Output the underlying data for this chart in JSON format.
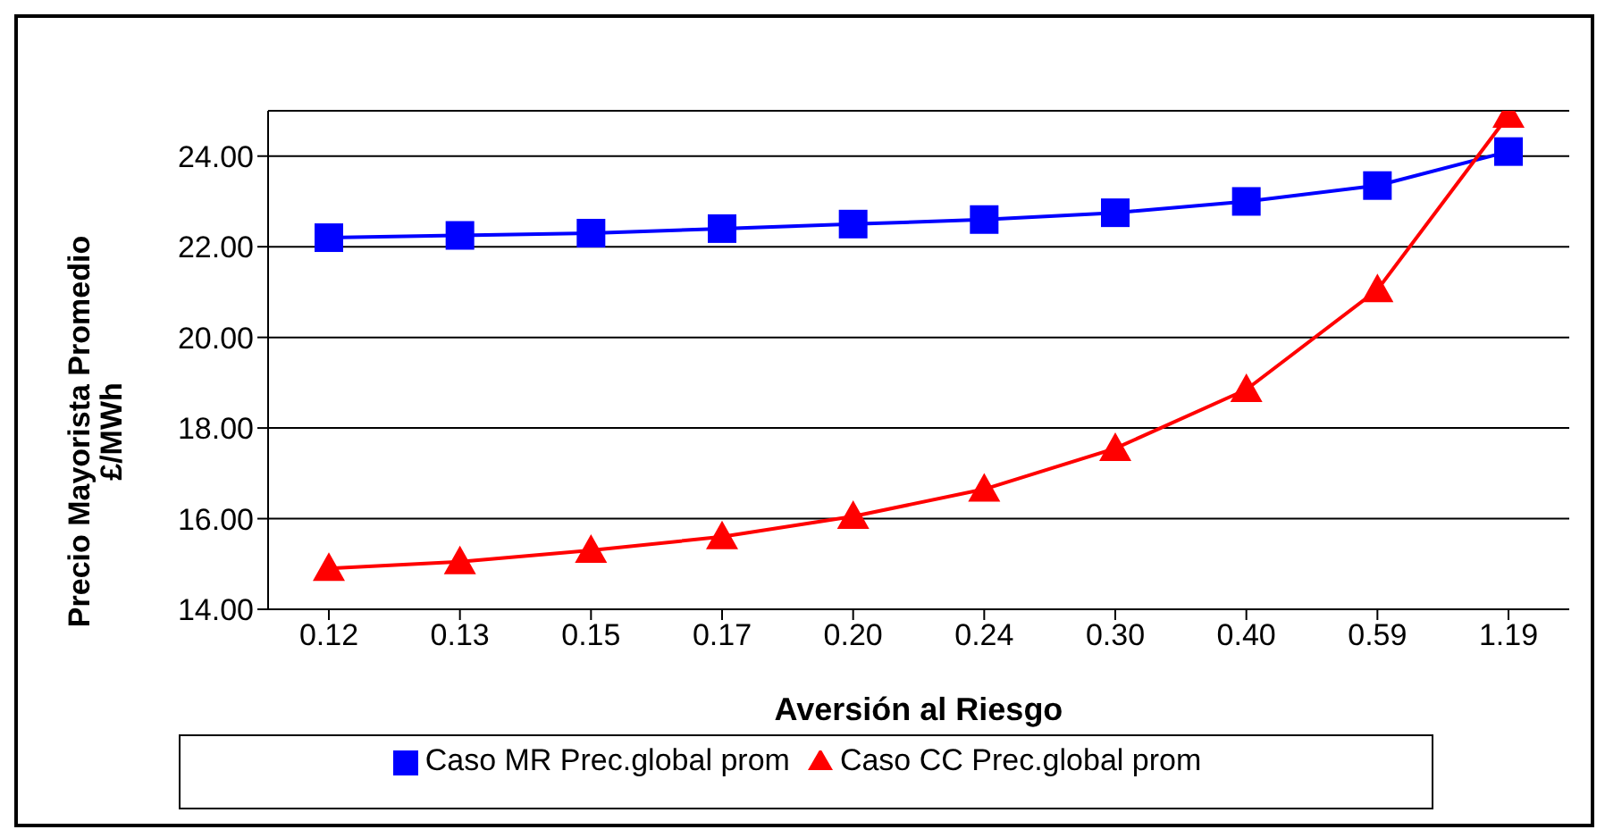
{
  "chart_data": {
    "type": "line",
    "xlabel": "Aversión al Riesgo",
    "ylabel": "Precio Mayorista Promedio\n£/MWh",
    "categories": [
      "0.12",
      "0.13",
      "0.15",
      "0.17",
      "0.20",
      "0.24",
      "0.30",
      "0.40",
      "0.59",
      "1.19"
    ],
    "series": [
      {
        "name": "Caso MR   Prec.global prom",
        "color": "#0000ff",
        "marker": "square",
        "values": [
          22.2,
          22.25,
          22.3,
          22.4,
          22.5,
          22.6,
          22.75,
          23.0,
          23.35,
          24.1
        ]
      },
      {
        "name": "Caso CC  Prec.global prom",
        "color": "#ff0000",
        "marker": "triangle",
        "values": [
          14.9,
          15.05,
          15.3,
          15.6,
          16.05,
          16.65,
          17.55,
          18.85,
          21.05,
          24.9
        ]
      }
    ],
    "ylim": [
      14,
      25
    ],
    "yticks": [
      {
        "value": 14,
        "label": "14.00"
      },
      {
        "value": 16,
        "label": "16.00"
      },
      {
        "value": 18,
        "label": "18.00"
      },
      {
        "value": 20,
        "label": "20.00"
      },
      {
        "value": 22,
        "label": "22.00"
      },
      {
        "value": 24,
        "label": "24.00"
      }
    ],
    "grid": "y",
    "legend": "bottom"
  }
}
